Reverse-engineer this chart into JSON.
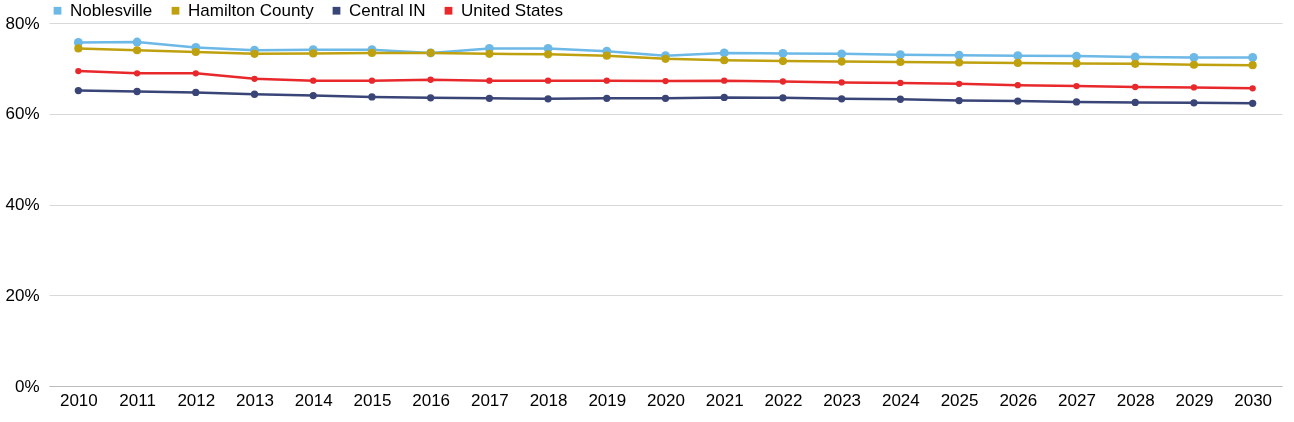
{
  "chart_data": {
    "type": "line",
    "categories": [
      "2010",
      "2011",
      "2012",
      "2013",
      "2014",
      "2015",
      "2016",
      "2017",
      "2018",
      "2019",
      "2020",
      "2021",
      "2022",
      "2023",
      "2024",
      "2025",
      "2026",
      "2027",
      "2028",
      "2029",
      "2030"
    ],
    "series": [
      {
        "name": "Noblesville",
        "color": "#6cb8e6",
        "values": [
          75.7,
          75.8,
          74.6,
          74.0,
          74.1,
          74.1,
          73.4,
          74.4,
          74.4,
          73.8,
          72.8,
          73.4,
          73.3,
          73.2,
          73.0,
          72.9,
          72.8,
          72.7,
          72.5,
          72.4,
          72.4
        ]
      },
      {
        "name": "Hamilton County",
        "color": "#bfa10f",
        "values": [
          74.4,
          74.0,
          73.6,
          73.2,
          73.3,
          73.4,
          73.4,
          73.2,
          73.1,
          72.8,
          72.1,
          71.8,
          71.6,
          71.5,
          71.4,
          71.3,
          71.2,
          71.1,
          71.0,
          70.8,
          70.7
        ]
      },
      {
        "name": "Central IN",
        "color": "#3a4577",
        "values": [
          65.1,
          64.9,
          64.7,
          64.3,
          64.0,
          63.7,
          63.5,
          63.4,
          63.3,
          63.4,
          63.4,
          63.6,
          63.5,
          63.3,
          63.2,
          62.9,
          62.8,
          62.6,
          62.5,
          62.4,
          62.3
        ]
      },
      {
        "name": "United States",
        "color": "#e8282b",
        "values": [
          69.4,
          68.9,
          68.9,
          67.7,
          67.3,
          67.3,
          67.5,
          67.3,
          67.3,
          67.3,
          67.2,
          67.3,
          67.1,
          66.9,
          66.8,
          66.6,
          66.3,
          66.1,
          65.9,
          65.8,
          65.6
        ]
      }
    ],
    "ylim": [
      0,
      80
    ],
    "yticks": [
      {
        "value": 0,
        "label": "0%"
      },
      {
        "value": 20,
        "label": "20%"
      },
      {
        "value": 40,
        "label": "40%"
      },
      {
        "value": 60,
        "label": "60%"
      },
      {
        "value": 80,
        "label": "80%"
      }
    ],
    "grid": "y",
    "legend": "top",
    "marker": "circle",
    "line_style": "solid"
  }
}
